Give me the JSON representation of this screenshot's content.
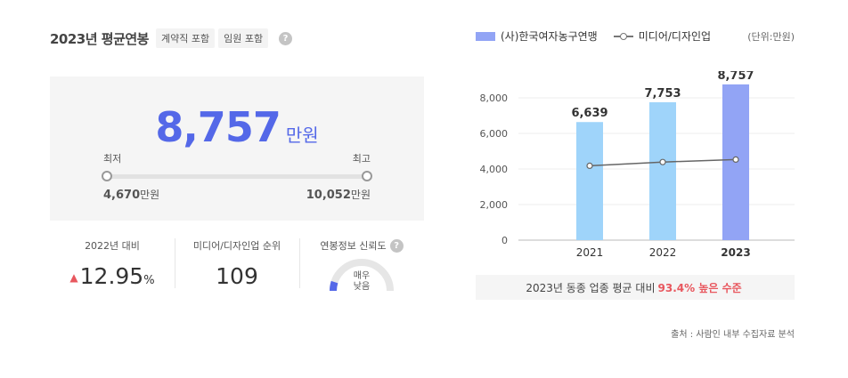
{
  "header": {
    "title": "2023년 평균연봉",
    "chips": [
      "계약직 포함",
      "임원 포함"
    ],
    "help": "?"
  },
  "salary": {
    "average": "8,757",
    "unit": "만원",
    "min_label": "최저",
    "max_label": "최고",
    "min_value": "4,670",
    "max_value": "10,052"
  },
  "stats": {
    "yoy_label": "2022년 대비",
    "yoy_value": "12.95",
    "yoy_unit": "%",
    "yoy_direction": "▲",
    "rank_label": "미디어/디자인업 순위",
    "rank_value": "109",
    "reliability_label": "연봉정보 신뢰도",
    "reliability_text_1": "매우",
    "reliability_text_2": "낮음",
    "reliability_level": 0.1
  },
  "legend": {
    "company": "(사)한국여자농구연맹",
    "industry": "미디어/디자인업",
    "unit_note": "(단위:만원)"
  },
  "chart_data": {
    "type": "bar",
    "categories": [
      "2021",
      "2022",
      "2023"
    ],
    "series": [
      {
        "name": "(사)한국여자농구연맹",
        "type": "bar",
        "values": [
          6639,
          7753,
          8757
        ],
        "labels": [
          "6,639",
          "7,753",
          "8,757"
        ]
      },
      {
        "name": "미디어/디자인업",
        "type": "line",
        "values": [
          4180,
          4390,
          4530
        ]
      }
    ],
    "y_ticks": [
      "0",
      "2,000",
      "4,000",
      "6,000",
      "8,000"
    ],
    "ylim": [
      0,
      9000
    ],
    "grid": true,
    "colors": {
      "bar": "#9fd4fa",
      "bar_highlight": "#92a4f5",
      "line": "#666666"
    }
  },
  "compare": {
    "prefix": "2023년 동종 업종 평균 대비",
    "highlight": "93.4% 높은 수준"
  },
  "source": "출처 : 사람인 내부 수집자료 분석"
}
